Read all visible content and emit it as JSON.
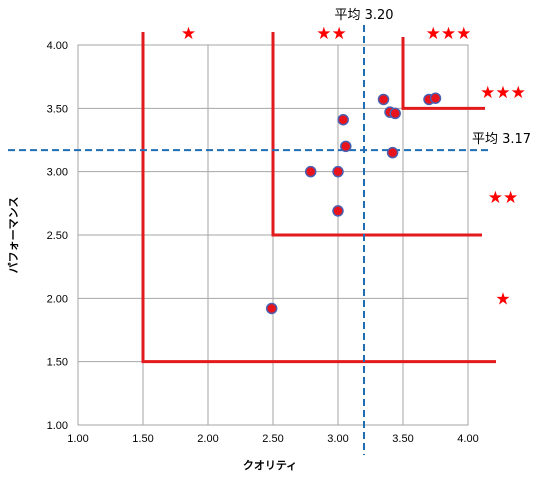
{
  "chart_data": {
    "type": "scatter",
    "xlabel": "クオリティ",
    "ylabel": "パフォーマンス",
    "xlim": [
      1.0,
      4.0
    ],
    "ylim": [
      1.0,
      4.0
    ],
    "x_ticks": [
      "1.00",
      "1.50",
      "2.00",
      "2.50",
      "3.00",
      "3.50",
      "4.00"
    ],
    "y_ticks": [
      "1.00",
      "1.50",
      "2.00",
      "2.50",
      "3.00",
      "3.50",
      "4.00"
    ],
    "grid": true,
    "points": [
      {
        "x": 2.49,
        "y": 1.92
      },
      {
        "x": 2.79,
        "y": 3.0
      },
      {
        "x": 3.0,
        "y": 3.0
      },
      {
        "x": 3.0,
        "y": 2.69
      },
      {
        "x": 3.04,
        "y": 3.41
      },
      {
        "x": 3.06,
        "y": 3.2
      },
      {
        "x": 3.35,
        "y": 3.57
      },
      {
        "x": 3.4,
        "y": 3.47
      },
      {
        "x": 3.44,
        "y": 3.46
      },
      {
        "x": 3.42,
        "y": 3.15
      },
      {
        "x": 3.7,
        "y": 3.57
      },
      {
        "x": 3.75,
        "y": 3.58
      }
    ],
    "averages": {
      "x_value": 3.2,
      "x_label": "平均 3.20",
      "y_value": 3.17,
      "y_label": "平均 3.17"
    },
    "zones": [
      {
        "x": 1.5,
        "y": 1.5
      },
      {
        "x": 2.5,
        "y": 2.5
      },
      {
        "x": 3.5,
        "y": 3.5
      }
    ],
    "star_labels": {
      "top": [
        {
          "x": 1.85,
          "text": "★"
        },
        {
          "x": 2.95,
          "text": "★★"
        },
        {
          "x": 3.85,
          "text": "★★★"
        }
      ],
      "right": [
        {
          "y": 3.63,
          "text": "★★★"
        },
        {
          "y": 2.8,
          "text": "★★"
        },
        {
          "y": 2.0,
          "text": "★"
        }
      ]
    },
    "colors": {
      "point_fill": "#e8131b",
      "point_stroke": "#4a5fb0",
      "zone_line": "#e31a1c",
      "average_line": "#1f6db5",
      "grid": "#a6a6a6",
      "star": "#ff0000"
    }
  }
}
